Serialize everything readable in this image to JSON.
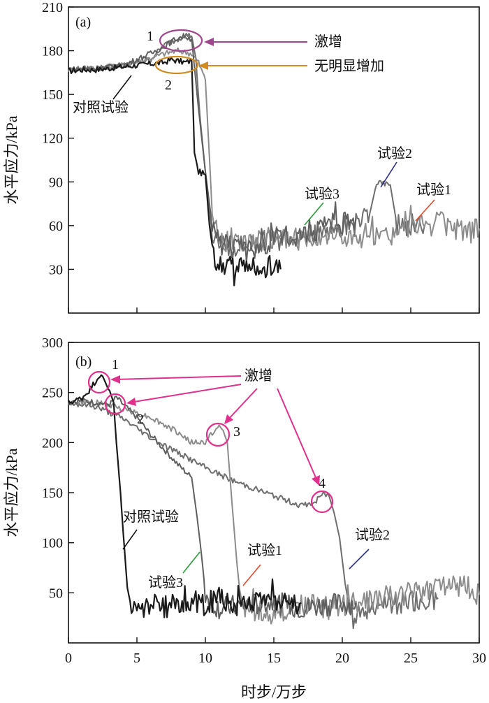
{
  "figure": {
    "xlabel": "时步/万步",
    "x_ticks": [
      "0",
      "5",
      "10",
      "15",
      "20",
      "25",
      "30"
    ]
  },
  "chart_data": [
    {
      "panel": "(a)",
      "type": "line",
      "ylabel": "水平应力/kPa",
      "xlabel": "时步/万步",
      "xlim": [
        0,
        30
      ],
      "ylim": [
        0,
        210
      ],
      "y_ticks": [
        30,
        60,
        90,
        120,
        150,
        180,
        210
      ],
      "grid": false,
      "colors": {
        "control": "#1a1a1a",
        "test1": "#8c8c8c",
        "test2": "#6e6e6e",
        "test3": "#5f5f5f",
        "magenta": "#a0468c",
        "orange": "#d08a1e"
      },
      "series": [
        {
          "name": "对照试验",
          "x": [
            0,
            1,
            2,
            3,
            4,
            5,
            6,
            7,
            7.5,
            8,
            8.5,
            9,
            9.2,
            9.5,
            10,
            10.3,
            10.6,
            11,
            12,
            13,
            14,
            15,
            15.5
          ],
          "y": [
            166,
            167,
            167,
            168,
            169,
            170,
            171,
            172,
            174,
            173,
            172,
            173,
            110,
            97,
            95,
            60,
            40,
            35,
            32,
            30,
            28,
            33,
            30
          ]
        },
        {
          "name": "试验1",
          "x": [
            0,
            2,
            4,
            6,
            7,
            8,
            9,
            9.5,
            10,
            10.5,
            11,
            13,
            15,
            17,
            19,
            21,
            23,
            25,
            27,
            29,
            30
          ],
          "y": [
            167,
            168,
            170,
            175,
            178,
            180,
            178,
            172,
            160,
            70,
            50,
            48,
            50,
            52,
            55,
            50,
            52,
            58,
            62,
            55,
            58
          ]
        },
        {
          "name": "试验2",
          "x": [
            0,
            2,
            4,
            6,
            7,
            8,
            8.5,
            9,
            9.3,
            9.6,
            10,
            10.5,
            11,
            13,
            15,
            17,
            19,
            21,
            22,
            22.5,
            23.5,
            24,
            26
          ],
          "y": [
            167,
            168,
            170,
            174,
            184,
            188,
            191,
            190,
            175,
            135,
            97,
            55,
            45,
            48,
            50,
            53,
            56,
            62,
            68,
            89,
            88,
            60,
            60
          ]
        },
        {
          "name": "试验3",
          "x": [
            0,
            2,
            4,
            6,
            7,
            8,
            8.5,
            9,
            9.5,
            10,
            10.5,
            11,
            13,
            15,
            17,
            19,
            21
          ],
          "y": [
            167,
            168,
            170,
            178,
            183,
            189,
            190,
            188,
            140,
            97,
            60,
            48,
            42,
            50,
            55,
            60,
            65
          ]
        }
      ],
      "labels": {
        "surge": "激增",
        "no_increase": "无明显增加",
        "point1": "1",
        "point2": "2",
        "control": "对照试验",
        "test1": "试验1",
        "test2": "试验2",
        "test3": "试验3"
      }
    },
    {
      "panel": "(b)",
      "type": "line",
      "ylabel": "水平应力/kPa",
      "xlabel": "时步/万步",
      "xlim": [
        0,
        30
      ],
      "ylim": [
        0,
        300
      ],
      "y_ticks": [
        50,
        100,
        150,
        200,
        250,
        300
      ],
      "grid": false,
      "colors": {
        "control": "#1a1a1a",
        "test1": "#8c8c8c",
        "test2": "#6e6e6e",
        "test3": "#5f5f5f",
        "magenta": "#e0308c"
      },
      "series": [
        {
          "name": "对照试验",
          "x": [
            0,
            0.5,
            1,
            1.5,
            2,
            2.3,
            2.6,
            3,
            3.3,
            3.5,
            3.8,
            4,
            4.3,
            4.6,
            5,
            6,
            7,
            8,
            9,
            10,
            11,
            12,
            13,
            14,
            15,
            16,
            17
          ],
          "y": [
            240,
            242,
            245,
            252,
            262,
            268,
            262,
            252,
            240,
            200,
            150,
            110,
            55,
            35,
            30,
            40,
            35,
            40,
            42,
            38,
            45,
            40,
            35,
            48,
            45,
            38,
            40
          ]
        },
        {
          "name": "试验1",
          "x": [
            0,
            2,
            4,
            6,
            8,
            9,
            10,
            10.5,
            11,
            11.3,
            11.6,
            12,
            12.3,
            12.6,
            13,
            15,
            17,
            19,
            21,
            23,
            25,
            27,
            29,
            30
          ],
          "y": [
            240,
            240,
            234,
            225,
            210,
            200,
            200,
            210,
            215,
            212,
            200,
            130,
            80,
            40,
            35,
            30,
            38,
            35,
            40,
            45,
            50,
            55,
            58,
            48
          ]
        },
        {
          "name": "试验2",
          "x": [
            0,
            2,
            4,
            6,
            8,
            10,
            12,
            14,
            16,
            17,
            18,
            18.5,
            19,
            19.4,
            19.8,
            20.2,
            20.5,
            21,
            23,
            25,
            27
          ],
          "y": [
            240,
            236,
            224,
            205,
            190,
            175,
            162,
            152,
            142,
            137,
            140,
            148,
            148,
            130,
            105,
            60,
            35,
            30,
            38,
            40,
            45
          ]
        },
        {
          "name": "试验3",
          "x": [
            0,
            1,
            2,
            3,
            3.5,
            4,
            5,
            6,
            7,
            8,
            9,
            9.4,
            9.7,
            10,
            10.5,
            11,
            13,
            15,
            17,
            19,
            21
          ],
          "y": [
            240,
            242,
            240,
            238,
            245,
            238,
            225,
            208,
            193,
            178,
            165,
            125,
            90,
            50,
            40,
            35,
            38,
            40,
            35,
            38,
            40
          ]
        }
      ],
      "labels": {
        "surge": "激增",
        "point1": "1",
        "point2": "2",
        "point3": "3",
        "point4": "4",
        "control": "对照试验",
        "test1": "试验1",
        "test2": "试验2",
        "test3": "试验3"
      }
    }
  ]
}
